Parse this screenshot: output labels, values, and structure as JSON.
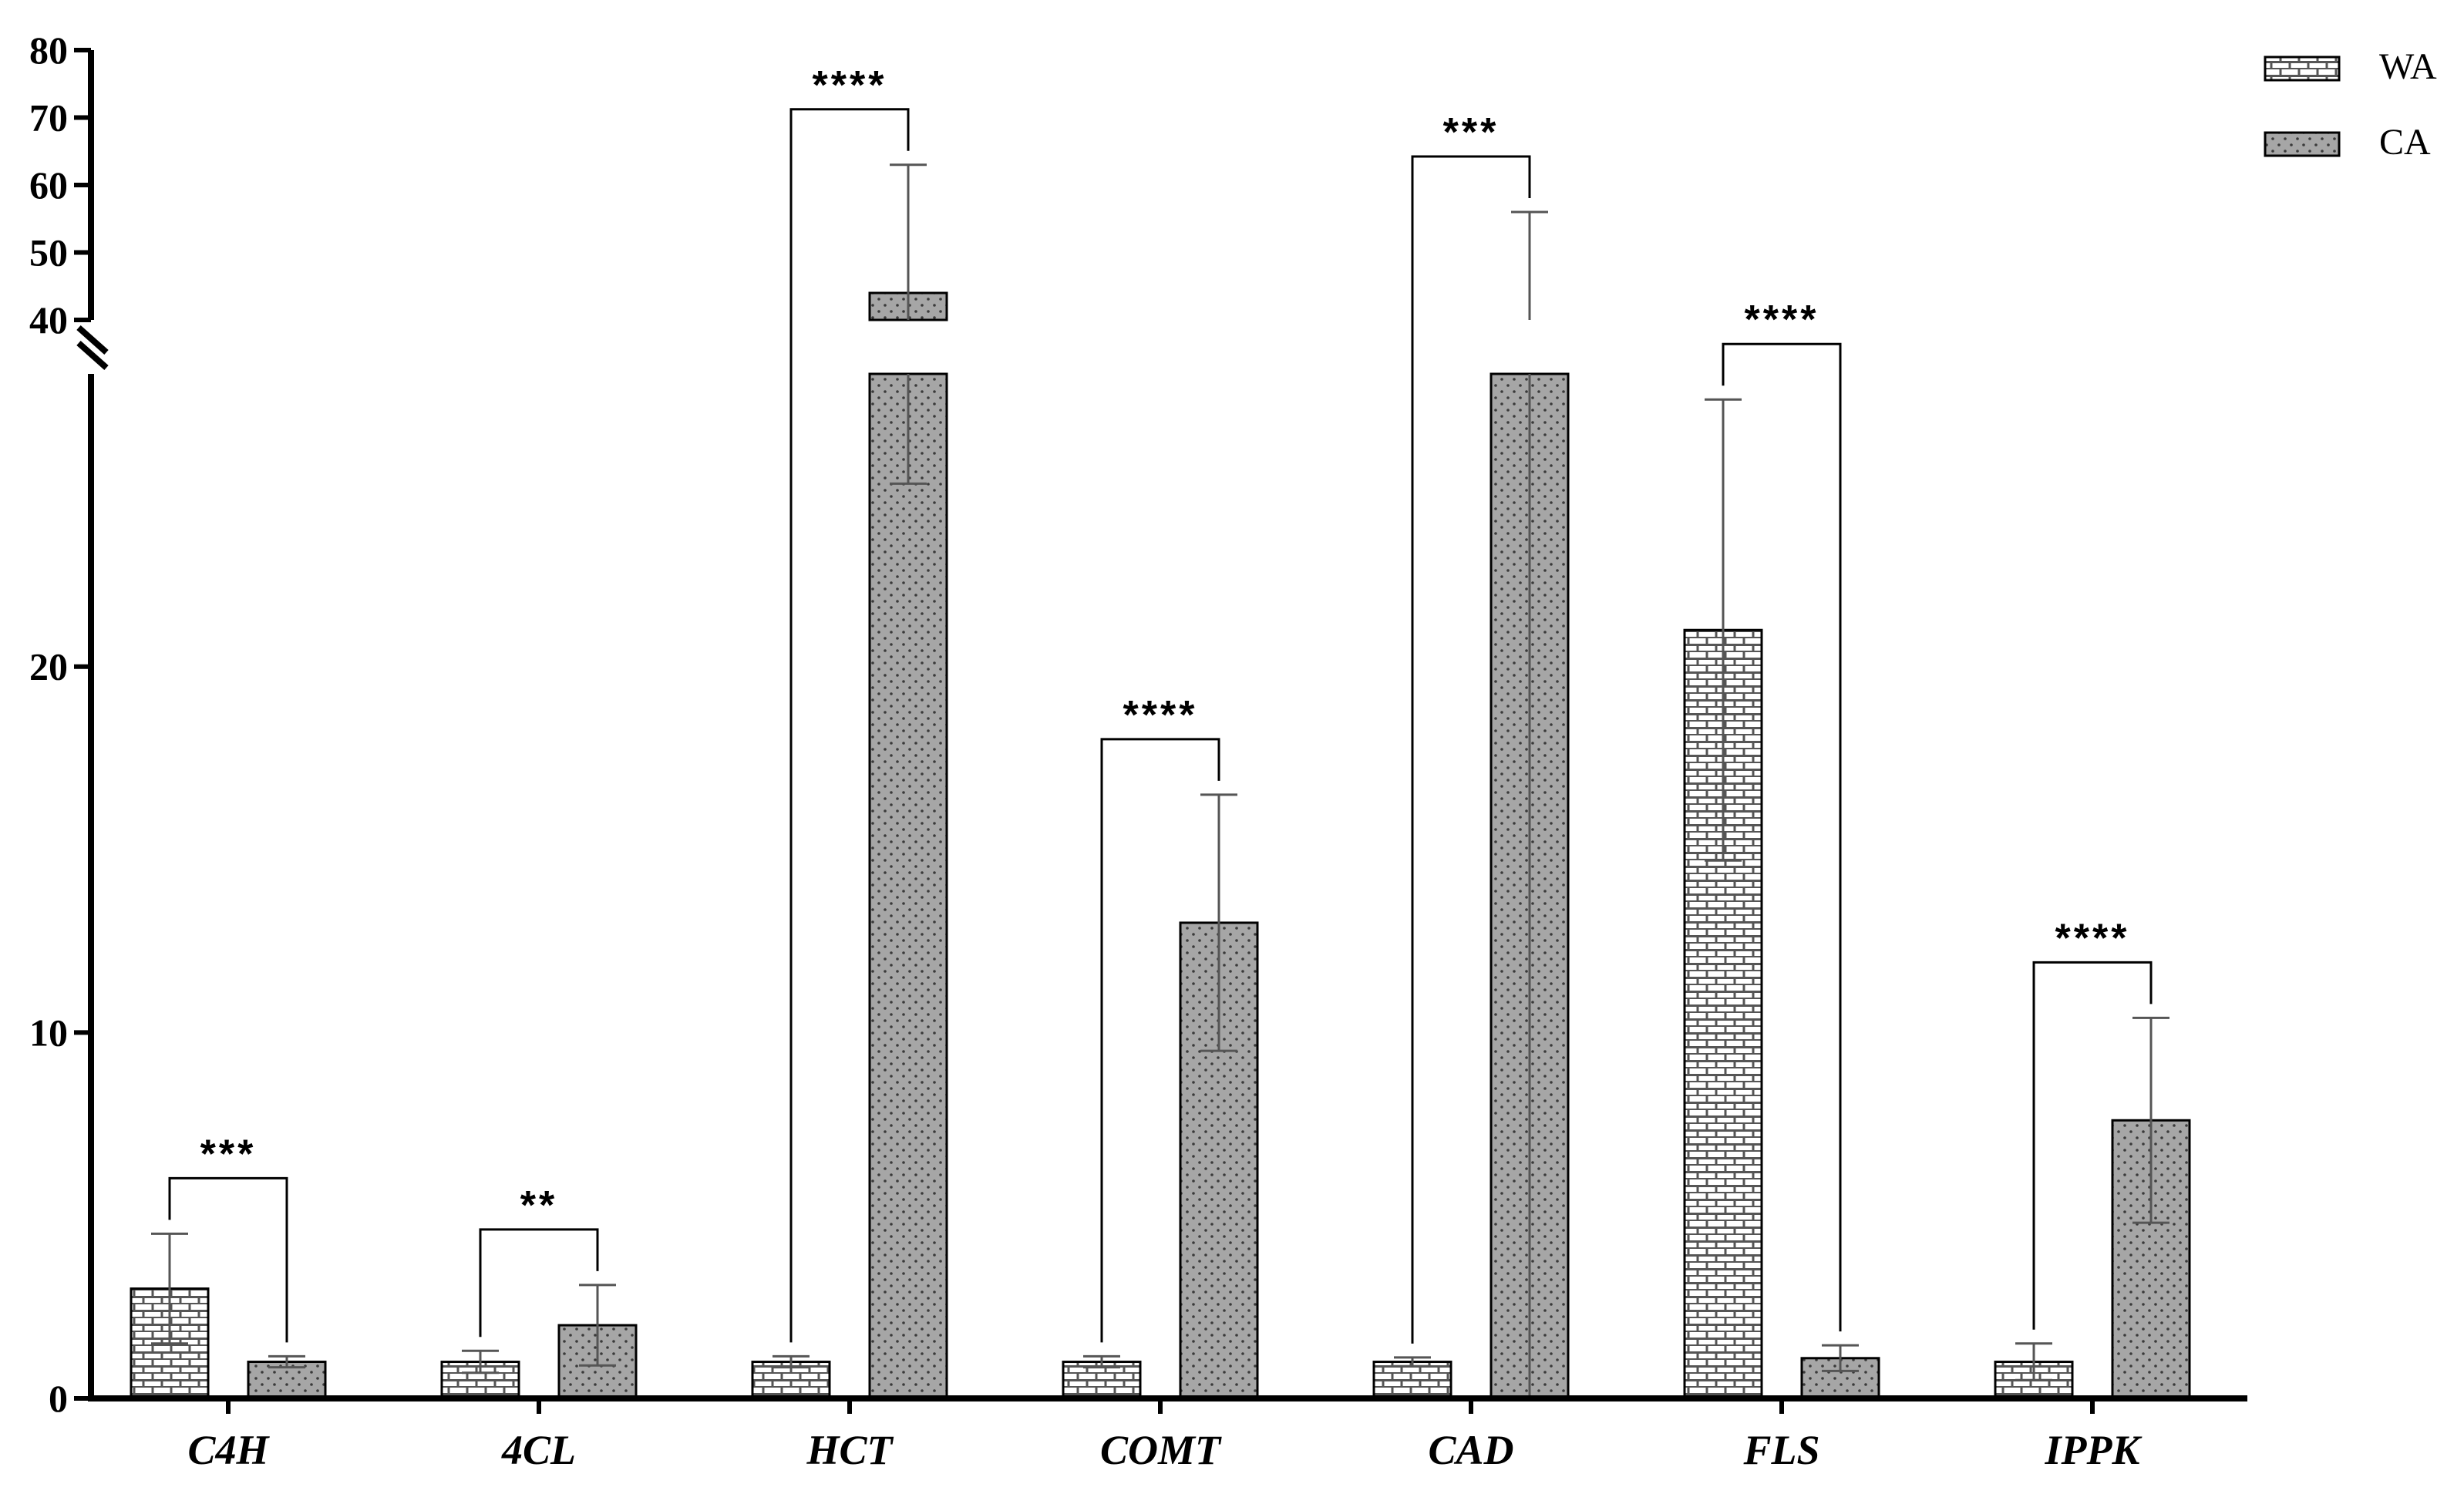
{
  "chart_data": {
    "type": "bar",
    "title": "",
    "xlabel": "",
    "ylabel": "",
    "categories": [
      "C4H",
      "4CL",
      "HCT",
      "COMT",
      "CAD",
      "FLS",
      "IPPK"
    ],
    "series": [
      {
        "name": "WA",
        "values": [
          3.0,
          1.0,
          1.0,
          1.0,
          1.0,
          21.0,
          1.0
        ],
        "errors": [
          1.5,
          0.3,
          0.15,
          0.15,
          0.12,
          6.3,
          0.5
        ],
        "pattern": "brick",
        "color": "#ffffff"
      },
      {
        "name": "CA",
        "values": [
          1.0,
          2.0,
          44.0,
          13.0,
          28.0,
          1.1,
          7.6
        ],
        "errors": [
          0.15,
          1.1,
          19.0,
          3.5,
          28.0,
          0.35,
          2.8
        ],
        "pattern": "dots",
        "color": "#a6a6a6"
      }
    ],
    "significance": [
      "***",
      "**",
      "****",
      "****",
      "***",
      "****",
      "****"
    ],
    "y_axis": {
      "lower_range": [
        0,
        28
      ],
      "upper_range": [
        40,
        80
      ],
      "lower_ticks": [
        "0",
        "10",
        "20"
      ],
      "upper_ticks": [
        "40",
        "50",
        "60",
        "70",
        "80"
      ],
      "lower_tick_values": [
        0,
        10,
        20
      ],
      "upper_tick_values": [
        40,
        50,
        60,
        70,
        80
      ],
      "broken": true
    },
    "legend": {
      "position": "top-right",
      "entries": [
        "WA",
        "CA"
      ]
    },
    "grid": false
  }
}
